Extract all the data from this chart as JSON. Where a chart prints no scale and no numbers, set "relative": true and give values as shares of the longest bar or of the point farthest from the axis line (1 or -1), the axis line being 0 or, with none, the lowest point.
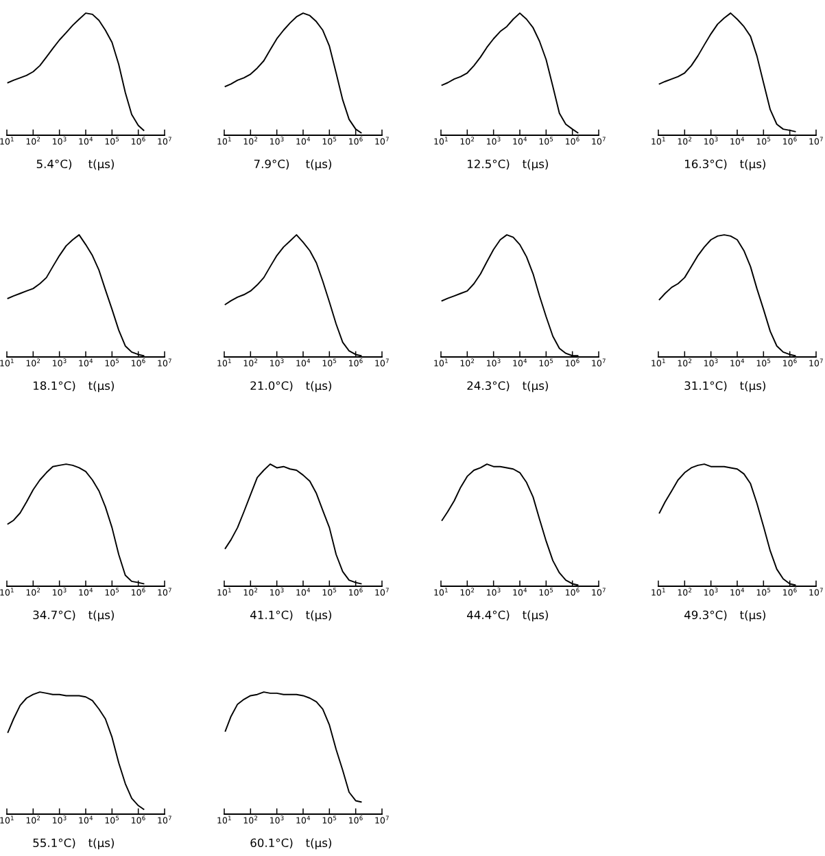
{
  "chart_data": [
    {
      "type": "line",
      "title": "5.4°C)",
      "xlabel": "t(μs)",
      "relative": true,
      "log": "x",
      "xlim": [
        10,
        10000000
      ],
      "xticks": [
        {
          "value": 10,
          "label": "10$^{1}$"
        },
        {
          "value": 100,
          "label": "10$^{2}$"
        },
        {
          "value": 1000,
          "label": "10$^{3}$"
        },
        {
          "value": 10000,
          "label": "10$^{4}$"
        },
        {
          "value": 100000,
          "label": "10$^{5}$"
        },
        {
          "value": 1000000,
          "label": "10$^{6}$"
        },
        {
          "value": 10000000,
          "label": "10$^{7}$"
        }
      ],
      "x": [
        11,
        18,
        32,
        56,
        100,
        180,
        320,
        560,
        1000,
        1800,
        3200,
        5600,
        10000,
        18000,
        32000,
        56000,
        100000,
        180000,
        320000,
        560000,
        1000000,
        1600000
      ],
      "series": [
        {
          "color": "#000000",
          "values": [
            0.43,
            0.45,
            0.47,
            0.49,
            0.52,
            0.57,
            0.64,
            0.71,
            0.78,
            0.84,
            0.9,
            0.95,
            1.0,
            0.99,
            0.94,
            0.86,
            0.76,
            0.58,
            0.35,
            0.17,
            0.08,
            0.04
          ]
        }
      ]
    },
    {
      "type": "line",
      "title": "7.9°C)",
      "xlabel": "t(μs)",
      "relative": true,
      "log": "x",
      "xlim": [
        10,
        10000000
      ],
      "xticks": [
        {
          "value": 10,
          "label": "10$^{1}$"
        },
        {
          "value": 100,
          "label": "10$^{2}$"
        },
        {
          "value": 1000,
          "label": "10$^{3}$"
        },
        {
          "value": 10000,
          "label": "10$^{4}$"
        },
        {
          "value": 100000,
          "label": "10$^{5}$"
        },
        {
          "value": 1000000,
          "label": "10$^{6}$"
        },
        {
          "value": 10000000,
          "label": "10$^{7}$"
        }
      ],
      "x": [
        11,
        18,
        32,
        56,
        100,
        180,
        320,
        560,
        1000,
        1800,
        3200,
        5600,
        10000,
        18000,
        32000,
        56000,
        100000,
        180000,
        320000,
        560000,
        1000000,
        1600000
      ],
      "series": [
        {
          "color": "#000000",
          "values": [
            0.4,
            0.42,
            0.45,
            0.47,
            0.5,
            0.55,
            0.61,
            0.7,
            0.79,
            0.86,
            0.92,
            0.97,
            1.0,
            0.98,
            0.93,
            0.86,
            0.73,
            0.51,
            0.29,
            0.13,
            0.05,
            0.02
          ]
        }
      ]
    },
    {
      "type": "line",
      "title": "12.5°C)",
      "xlabel": "t(μs)",
      "relative": true,
      "log": "x",
      "xlim": [
        10,
        10000000
      ],
      "xticks": [
        {
          "value": 10,
          "label": "10$^{1}$"
        },
        {
          "value": 100,
          "label": "10$^{2}$"
        },
        {
          "value": 1000,
          "label": "10$^{3}$"
        },
        {
          "value": 10000,
          "label": "10$^{4}$"
        },
        {
          "value": 100000,
          "label": "10$^{5}$"
        },
        {
          "value": 1000000,
          "label": "10$^{6}$"
        },
        {
          "value": 10000000,
          "label": "10$^{7}$"
        }
      ],
      "x": [
        11,
        18,
        32,
        56,
        100,
        180,
        320,
        560,
        1000,
        1800,
        3200,
        5600,
        10000,
        18000,
        32000,
        56000,
        100000,
        180000,
        320000,
        560000,
        1000000,
        1600000
      ],
      "series": [
        {
          "color": "#000000",
          "values": [
            0.41,
            0.43,
            0.46,
            0.48,
            0.51,
            0.57,
            0.64,
            0.72,
            0.79,
            0.85,
            0.89,
            0.95,
            1.0,
            0.95,
            0.88,
            0.77,
            0.62,
            0.4,
            0.18,
            0.09,
            0.05,
            0.02
          ]
        }
      ]
    },
    {
      "type": "line",
      "title": "16.3°C)",
      "xlabel": "t(μs)",
      "relative": true,
      "log": "x",
      "xlim": [
        10,
        10000000
      ],
      "xticks": [
        {
          "value": 10,
          "label": "10$^{1}$"
        },
        {
          "value": 100,
          "label": "10$^{2}$"
        },
        {
          "value": 1000,
          "label": "10$^{3}$"
        },
        {
          "value": 10000,
          "label": "10$^{4}$"
        },
        {
          "value": 100000,
          "label": "10$^{5}$"
        },
        {
          "value": 1000000,
          "label": "10$^{6}$"
        },
        {
          "value": 10000000,
          "label": "10$^{7}$"
        }
      ],
      "x": [
        11,
        18,
        32,
        56,
        100,
        180,
        320,
        560,
        1000,
        1800,
        3200,
        5600,
        10000,
        18000,
        32000,
        56000,
        100000,
        180000,
        320000,
        560000,
        1000000,
        1600000
      ],
      "series": [
        {
          "color": "#000000",
          "values": [
            0.42,
            0.44,
            0.46,
            0.48,
            0.51,
            0.57,
            0.65,
            0.74,
            0.83,
            0.91,
            0.96,
            1.0,
            0.95,
            0.89,
            0.81,
            0.65,
            0.43,
            0.21,
            0.09,
            0.05,
            0.04,
            0.03
          ]
        }
      ]
    },
    {
      "type": "line",
      "title": "18.1°C)",
      "xlabel": "t(μs)",
      "relative": true,
      "log": "x",
      "xlim": [
        10,
        10000000
      ],
      "xticks": [
        {
          "value": 10,
          "label": "10$^{1}$"
        },
        {
          "value": 100,
          "label": "10$^{2}$"
        },
        {
          "value": 1000,
          "label": "10$^{3}$"
        },
        {
          "value": 10000,
          "label": "10$^{4}$"
        },
        {
          "value": 100000,
          "label": "10$^{5}$"
        },
        {
          "value": 1000000,
          "label": "10$^{6}$"
        },
        {
          "value": 10000000,
          "label": "10$^{7}$"
        }
      ],
      "x": [
        11,
        18,
        32,
        56,
        100,
        180,
        320,
        560,
        1000,
        1800,
        3200,
        5600,
        10000,
        18000,
        32000,
        56000,
        100000,
        180000,
        320000,
        560000,
        1000000,
        1600000
      ],
      "series": [
        {
          "color": "#000000",
          "values": [
            0.48,
            0.5,
            0.52,
            0.54,
            0.56,
            0.6,
            0.65,
            0.74,
            0.83,
            0.91,
            0.96,
            1.0,
            0.92,
            0.83,
            0.71,
            0.55,
            0.39,
            0.22,
            0.09,
            0.04,
            0.02,
            0.01
          ]
        }
      ]
    },
    {
      "type": "line",
      "title": "21.0°C)",
      "xlabel": "t(μs)",
      "relative": true,
      "log": "x",
      "xlim": [
        10,
        10000000
      ],
      "xticks": [
        {
          "value": 10,
          "label": "10$^{1}$"
        },
        {
          "value": 100,
          "label": "10$^{2}$"
        },
        {
          "value": 1000,
          "label": "10$^{3}$"
        },
        {
          "value": 10000,
          "label": "10$^{4}$"
        },
        {
          "value": 100000,
          "label": "10$^{5}$"
        },
        {
          "value": 1000000,
          "label": "10$^{6}$"
        },
        {
          "value": 10000000,
          "label": "10$^{7}$"
        }
      ],
      "x": [
        11,
        18,
        32,
        56,
        100,
        180,
        320,
        560,
        1000,
        1800,
        3200,
        5600,
        10000,
        18000,
        32000,
        56000,
        100000,
        180000,
        320000,
        560000,
        1000000,
        1600000
      ],
      "series": [
        {
          "color": "#000000",
          "values": [
            0.43,
            0.46,
            0.49,
            0.51,
            0.54,
            0.59,
            0.65,
            0.74,
            0.83,
            0.9,
            0.95,
            1.0,
            0.94,
            0.87,
            0.77,
            0.62,
            0.45,
            0.27,
            0.12,
            0.05,
            0.02,
            0.01
          ]
        }
      ]
    },
    {
      "type": "line",
      "title": "24.3°C)",
      "xlabel": "t(μs)",
      "relative": true,
      "log": "x",
      "xlim": [
        10,
        10000000
      ],
      "xticks": [
        {
          "value": 10,
          "label": "10$^{1}$"
        },
        {
          "value": 100,
          "label": "10$^{2}$"
        },
        {
          "value": 1000,
          "label": "10$^{3}$"
        },
        {
          "value": 10000,
          "label": "10$^{4}$"
        },
        {
          "value": 100000,
          "label": "10$^{5}$"
        },
        {
          "value": 1000000,
          "label": "10$^{6}$"
        },
        {
          "value": 10000000,
          "label": "10$^{7}$"
        }
      ],
      "x": [
        11,
        18,
        32,
        56,
        100,
        180,
        320,
        560,
        1000,
        1800,
        3200,
        5600,
        10000,
        18000,
        32000,
        56000,
        100000,
        180000,
        320000,
        560000,
        1000000,
        1600000
      ],
      "series": [
        {
          "color": "#000000",
          "values": [
            0.46,
            0.48,
            0.5,
            0.52,
            0.54,
            0.6,
            0.68,
            0.78,
            0.88,
            0.96,
            1.0,
            0.98,
            0.92,
            0.82,
            0.68,
            0.5,
            0.33,
            0.17,
            0.07,
            0.03,
            0.01,
            0.01
          ]
        }
      ]
    },
    {
      "type": "line",
      "title": "31.1°C)",
      "xlabel": "t(μs)",
      "relative": true,
      "log": "x",
      "xlim": [
        10,
        10000000
      ],
      "xticks": [
        {
          "value": 10,
          "label": "10$^{1}$"
        },
        {
          "value": 100,
          "label": "10$^{2}$"
        },
        {
          "value": 1000,
          "label": "10$^{3}$"
        },
        {
          "value": 10000,
          "label": "10$^{4}$"
        },
        {
          "value": 100000,
          "label": "10$^{5}$"
        },
        {
          "value": 1000000,
          "label": "10$^{6}$"
        },
        {
          "value": 10000000,
          "label": "10$^{7}$"
        }
      ],
      "x": [
        11,
        18,
        32,
        56,
        100,
        180,
        320,
        560,
        1000,
        1800,
        3200,
        5600,
        10000,
        18000,
        32000,
        56000,
        100000,
        180000,
        320000,
        560000,
        1000000,
        1600000
      ],
      "series": [
        {
          "color": "#000000",
          "values": [
            0.47,
            0.52,
            0.57,
            0.6,
            0.65,
            0.74,
            0.83,
            0.9,
            0.96,
            0.99,
            1.0,
            0.99,
            0.96,
            0.87,
            0.74,
            0.56,
            0.39,
            0.21,
            0.09,
            0.04,
            0.02,
            0.01
          ]
        }
      ]
    },
    {
      "type": "line",
      "title": "34.7°C)",
      "xlabel": "t(μs)",
      "relative": true,
      "log": "x",
      "xlim": [
        10,
        10000000
      ],
      "xticks": [
        {
          "value": 10,
          "label": "10$^{1}$"
        },
        {
          "value": 100,
          "label": "10$^{2}$"
        },
        {
          "value": 1000,
          "label": "10$^{3}$"
        },
        {
          "value": 10000,
          "label": "10$^{4}$"
        },
        {
          "value": 100000,
          "label": "10$^{5}$"
        },
        {
          "value": 1000000,
          "label": "10$^{6}$"
        },
        {
          "value": 10000000,
          "label": "10$^{7}$"
        }
      ],
      "x": [
        11,
        18,
        32,
        56,
        100,
        180,
        320,
        560,
        1000,
        1800,
        3200,
        5600,
        10000,
        18000,
        32000,
        56000,
        100000,
        180000,
        320000,
        560000,
        1000000,
        1600000
      ],
      "series": [
        {
          "color": "#000000",
          "values": [
            0.51,
            0.54,
            0.6,
            0.69,
            0.79,
            0.87,
            0.93,
            0.98,
            0.99,
            1.0,
            0.99,
            0.97,
            0.94,
            0.87,
            0.78,
            0.65,
            0.48,
            0.26,
            0.09,
            0.04,
            0.03,
            0.02
          ]
        }
      ]
    },
    {
      "type": "line",
      "title": "41.1°C)",
      "xlabel": "t(μs)",
      "relative": true,
      "log": "x",
      "xlim": [
        10,
        10000000
      ],
      "xticks": [
        {
          "value": 10,
          "label": "10$^{1}$"
        },
        {
          "value": 100,
          "label": "10$^{2}$"
        },
        {
          "value": 1000,
          "label": "10$^{3}$"
        },
        {
          "value": 10000,
          "label": "10$^{4}$"
        },
        {
          "value": 100000,
          "label": "10$^{5}$"
        },
        {
          "value": 1000000,
          "label": "10$^{6}$"
        },
        {
          "value": 10000000,
          "label": "10$^{7}$"
        }
      ],
      "x": [
        11,
        18,
        32,
        56,
        100,
        180,
        320,
        560,
        1000,
        1800,
        3200,
        5600,
        10000,
        18000,
        32000,
        56000,
        100000,
        180000,
        320000,
        560000,
        1000000,
        1600000
      ],
      "series": [
        {
          "color": "#000000",
          "values": [
            0.31,
            0.38,
            0.48,
            0.61,
            0.75,
            0.89,
            0.95,
            1.0,
            0.97,
            0.98,
            0.96,
            0.95,
            0.91,
            0.86,
            0.76,
            0.62,
            0.48,
            0.26,
            0.12,
            0.05,
            0.03,
            0.02
          ]
        }
      ]
    },
    {
      "type": "line",
      "title": "44.4°C)",
      "xlabel": "t(μs)",
      "relative": true,
      "log": "x",
      "xlim": [
        10,
        10000000
      ],
      "xticks": [
        {
          "value": 10,
          "label": "10$^{1}$"
        },
        {
          "value": 100,
          "label": "10$^{2}$"
        },
        {
          "value": 1000,
          "label": "10$^{3}$"
        },
        {
          "value": 10000,
          "label": "10$^{4}$"
        },
        {
          "value": 100000,
          "label": "10$^{5}$"
        },
        {
          "value": 1000000,
          "label": "10$^{6}$"
        },
        {
          "value": 10000000,
          "label": "10$^{7}$"
        }
      ],
      "x": [
        11,
        18,
        32,
        56,
        100,
        180,
        320,
        560,
        1000,
        1800,
        3200,
        5600,
        10000,
        18000,
        32000,
        56000,
        100000,
        180000,
        320000,
        560000,
        1000000,
        1600000
      ],
      "series": [
        {
          "color": "#000000",
          "values": [
            0.54,
            0.61,
            0.7,
            0.81,
            0.9,
            0.95,
            0.97,
            1.0,
            0.98,
            0.98,
            0.97,
            0.96,
            0.93,
            0.85,
            0.73,
            0.55,
            0.37,
            0.21,
            0.11,
            0.05,
            0.02,
            0.01
          ]
        }
      ]
    },
    {
      "type": "line",
      "title": "49.3°C)",
      "xlabel": "t(μs)",
      "relative": true,
      "log": "x",
      "xlim": [
        10,
        10000000
      ],
      "xticks": [
        {
          "value": 10,
          "label": "10$^{1}$"
        },
        {
          "value": 100,
          "label": "10$^{2}$"
        },
        {
          "value": 1000,
          "label": "10$^{3}$"
        },
        {
          "value": 10000,
          "label": "10$^{4}$"
        },
        {
          "value": 100000,
          "label": "10$^{5}$"
        },
        {
          "value": 1000000,
          "label": "10$^{6}$"
        },
        {
          "value": 10000000,
          "label": "10$^{7}$"
        }
      ],
      "x": [
        11,
        18,
        32,
        56,
        100,
        180,
        320,
        560,
        1000,
        1800,
        3200,
        5600,
        10000,
        18000,
        32000,
        56000,
        100000,
        180000,
        320000,
        560000,
        1000000,
        1600000
      ],
      "series": [
        {
          "color": "#000000",
          "values": [
            0.6,
            0.69,
            0.78,
            0.87,
            0.93,
            0.97,
            0.99,
            1.0,
            0.98,
            0.98,
            0.98,
            0.97,
            0.96,
            0.92,
            0.84,
            0.68,
            0.49,
            0.29,
            0.14,
            0.06,
            0.02,
            0.01
          ]
        }
      ]
    },
    {
      "type": "line",
      "title": "55.1°C)",
      "xlabel": "t(μs)",
      "relative": true,
      "log": "x",
      "xlim": [
        10,
        10000000
      ],
      "xticks": [
        {
          "value": 10,
          "label": "10$^{1}$"
        },
        {
          "value": 100,
          "label": "10$^{2}$"
        },
        {
          "value": 1000,
          "label": "10$^{3}$"
        },
        {
          "value": 10000,
          "label": "10$^{4}$"
        },
        {
          "value": 100000,
          "label": "10$^{5}$"
        },
        {
          "value": 1000000,
          "label": "10$^{6}$"
        },
        {
          "value": 10000000,
          "label": "10$^{7}$"
        }
      ],
      "x": [
        11,
        18,
        32,
        56,
        100,
        180,
        320,
        560,
        1000,
        1800,
        3200,
        5600,
        10000,
        18000,
        32000,
        56000,
        100000,
        180000,
        320000,
        560000,
        1000000,
        1600000
      ],
      "series": [
        {
          "color": "#000000",
          "values": [
            0.67,
            0.78,
            0.89,
            0.95,
            0.98,
            1.0,
            0.99,
            0.98,
            0.98,
            0.97,
            0.97,
            0.97,
            0.96,
            0.93,
            0.86,
            0.78,
            0.63,
            0.42,
            0.25,
            0.13,
            0.07,
            0.04
          ]
        }
      ]
    },
    {
      "type": "line",
      "title": "60.1°C)",
      "xlabel": "t(μs)",
      "relative": true,
      "log": "x",
      "xlim": [
        10,
        10000000
      ],
      "xticks": [
        {
          "value": 10,
          "label": "10$^{1}$"
        },
        {
          "value": 100,
          "label": "10$^{2}$"
        },
        {
          "value": 1000,
          "label": "10$^{3}$"
        },
        {
          "value": 10000,
          "label": "10$^{4}$"
        },
        {
          "value": 100000,
          "label": "10$^{5}$"
        },
        {
          "value": 1000000,
          "label": "10$^{6}$"
        },
        {
          "value": 10000000,
          "label": "10$^{7}$"
        }
      ],
      "x": [
        11,
        18,
        32,
        56,
        100,
        180,
        320,
        560,
        1000,
        1800,
        3200,
        5600,
        10000,
        18000,
        32000,
        56000,
        100000,
        180000,
        320000,
        560000,
        1000000,
        1600000
      ],
      "series": [
        {
          "color": "#000000",
          "values": [
            0.68,
            0.8,
            0.9,
            0.94,
            0.97,
            0.98,
            1.0,
            0.99,
            0.99,
            0.98,
            0.98,
            0.98,
            0.97,
            0.95,
            0.92,
            0.86,
            0.73,
            0.53,
            0.36,
            0.18,
            0.11,
            0.1
          ]
        }
      ]
    }
  ]
}
